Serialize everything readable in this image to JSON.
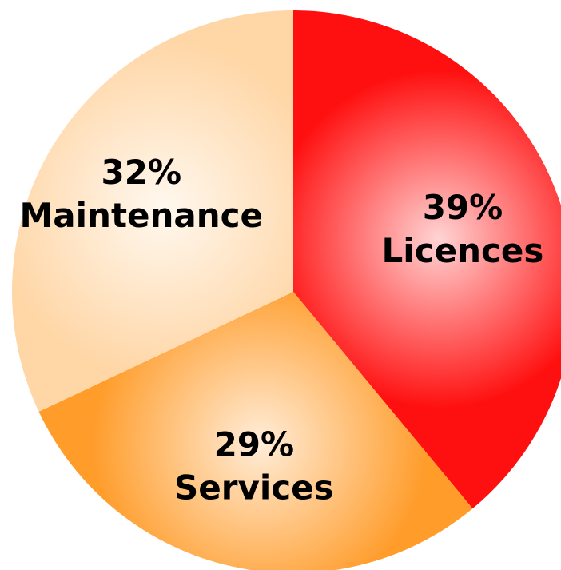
{
  "chart_data": {
    "type": "pie",
    "categories": [
      "Licences",
      "Services",
      "Maintenance"
    ],
    "values": [
      39,
      29,
      32
    ],
    "value_labels": [
      "39%",
      "29%",
      "32%"
    ],
    "colors": [
      "#ff1010",
      "#ff9c2a",
      "#ffd6a6"
    ]
  }
}
